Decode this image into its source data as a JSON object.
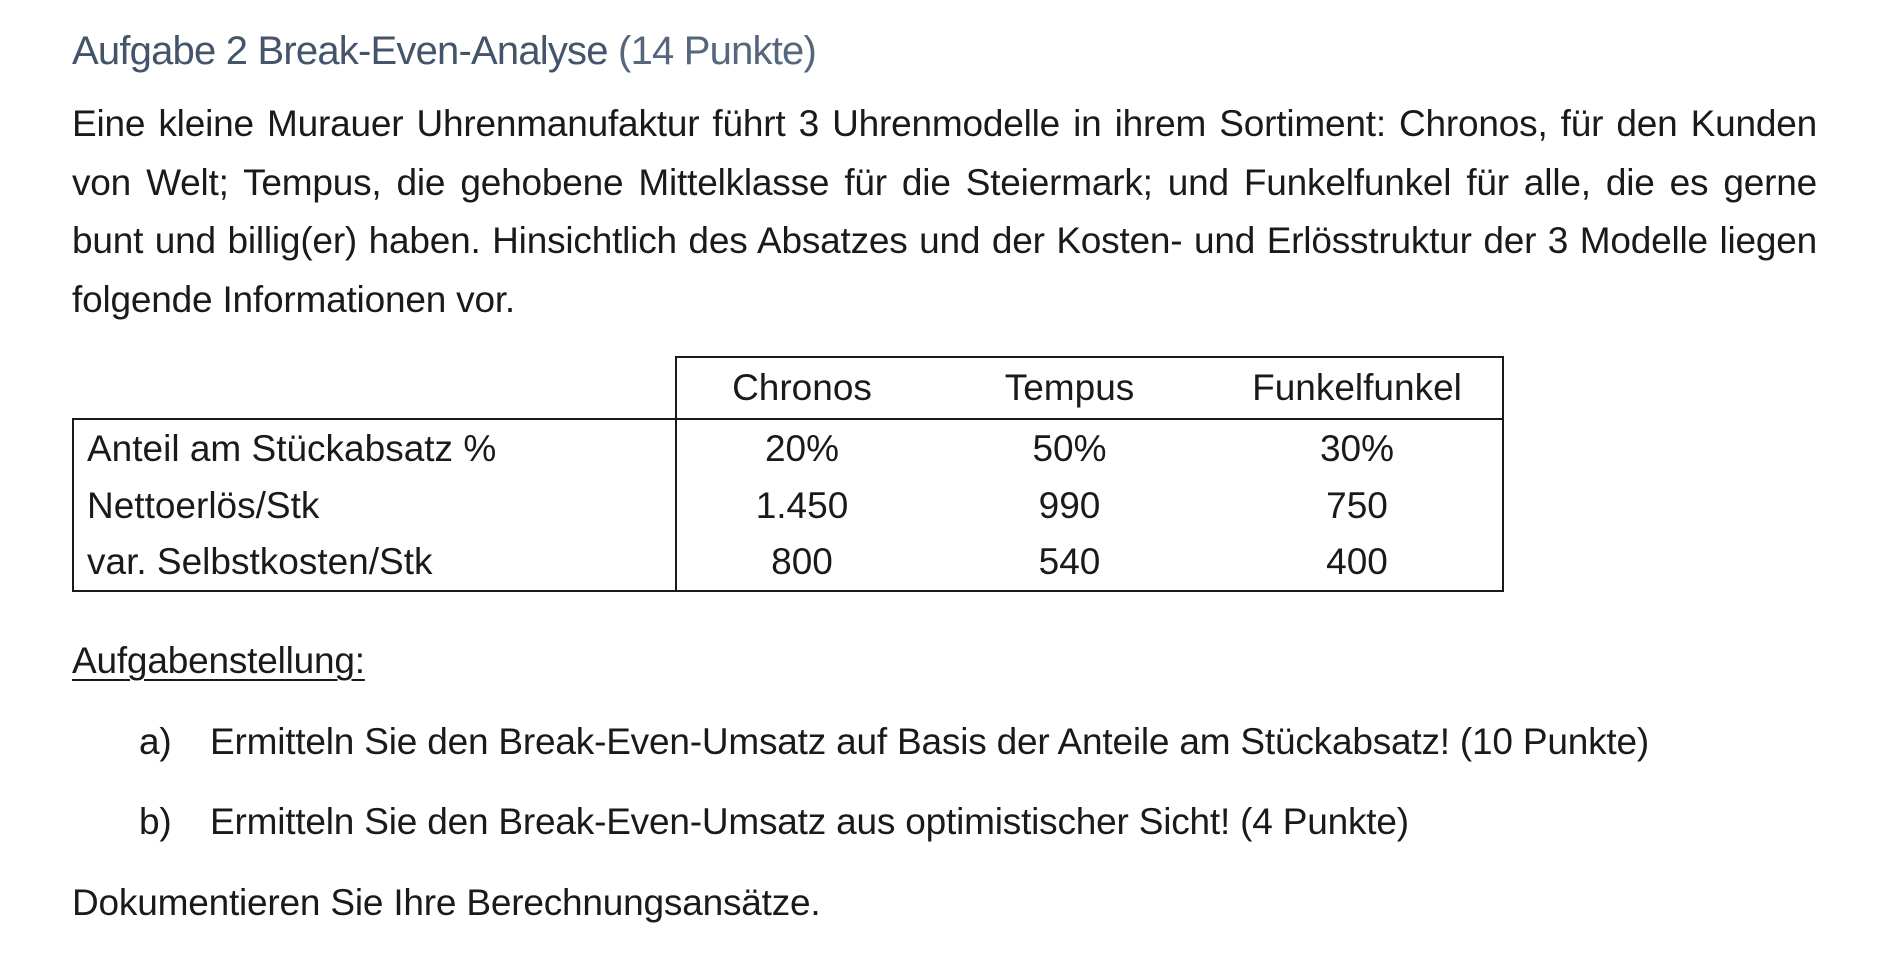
{
  "heading": {
    "title": "Aufgabe 2 Break-Even-Analyse",
    "points": "(14 Punkte)"
  },
  "intro": "Eine kleine Murauer Uhrenmanufaktur führt 3 Uhrenmodelle in ihrem Sortiment: Chronos, für den Kunden von Welt; Tempus, die gehobene Mittelklasse für die Steiermark; und Funkelfunkel für alle, die es gerne bunt und billig(er) haben. Hinsichtlich des Absatzes und der Kosten- und Erlösstruktur der 3 Modelle liegen folgende Informationen vor.",
  "table": {
    "columns": [
      "Chronos",
      "Tempus",
      "Funkelfunkel"
    ],
    "rows": [
      {
        "label": "Anteil am Stückabsatz %",
        "values": [
          "20%",
          "50%",
          "30%"
        ]
      },
      {
        "label": "Nettoerlös/Stk",
        "values": [
          "1.450",
          "990",
          "750"
        ]
      },
      {
        "label": "var. Selbstkosten/Stk",
        "values": [
          "800",
          "540",
          "400"
        ]
      }
    ]
  },
  "task": {
    "title": "Aufgabenstellung:",
    "items": [
      {
        "marker": "a)",
        "text": "Ermitteln Sie den Break-Even-Umsatz auf Basis der Anteile am Stückabsatz! (10 Punkte)"
      },
      {
        "marker": "b)",
        "text": "Ermitteln Sie den Break-Even-Umsatz aus optimistischer Sicht! (4 Punkte)"
      }
    ]
  },
  "closing": "Dokumentieren Sie Ihre Berechnungsansätze."
}
